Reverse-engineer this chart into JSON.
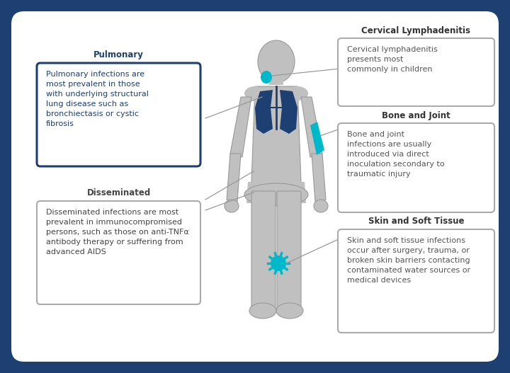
{
  "outer_bg": "#1e3f72",
  "inner_bg": "#ffffff",
  "body_color": "#c0c0c0",
  "body_outline": "#999999",
  "lung_color": "#1e3f72",
  "highlight_color": "#00b8cc",
  "line_color": "#999999",
  "box_border_gray": "#aaaaaa",
  "pulmonary_box_border": "#1e3f72",
  "pulmonary_title": "Pulmonary",
  "pulmonary_title_color": "#1e3f72",
  "pulmonary_text": "Pulmonary infections are\nmost prevalent in those\nwith underlying structural\nlung disease such as\nbronchiectasis or cystic\nfibrosis",
  "pulmonary_text_color": "#1e3f72",
  "disseminated_title": "Disseminated",
  "disseminated_title_color": "#444444",
  "disseminated_text": "Disseminated infections are most\nprevalent in immunocompromised\npersons, such as those on anti-TNFα\nantibody therapy or suffering from\nadvanced AIDS",
  "disseminated_text_color": "#444444",
  "cervical_title": "Cervical Lymphadenitis",
  "cervical_title_color": "#333333",
  "cervical_text": "Cervical lymphadenitis\npresents most\ncommonly in children",
  "cervical_text_color": "#555555",
  "bone_title": "Bone and Joint",
  "bone_title_color": "#333333",
  "bone_text": "Bone and joint\ninfections are usually\nintroduced via direct\ninoculation secondary to\ntraumatic injury",
  "bone_text_color": "#555555",
  "skin_title": "Skin and Soft Tissue",
  "skin_title_color": "#333333",
  "skin_text": "Skin and soft tissue infections\noccur after surgery, trauma, or\nbroken skin barriers contacting\ncontaminated water sources or\nmedical devices",
  "skin_text_color": "#555555",
  "title_fontsize": 9.5,
  "label_fontsize": 8.5,
  "text_fontsize": 8.0
}
